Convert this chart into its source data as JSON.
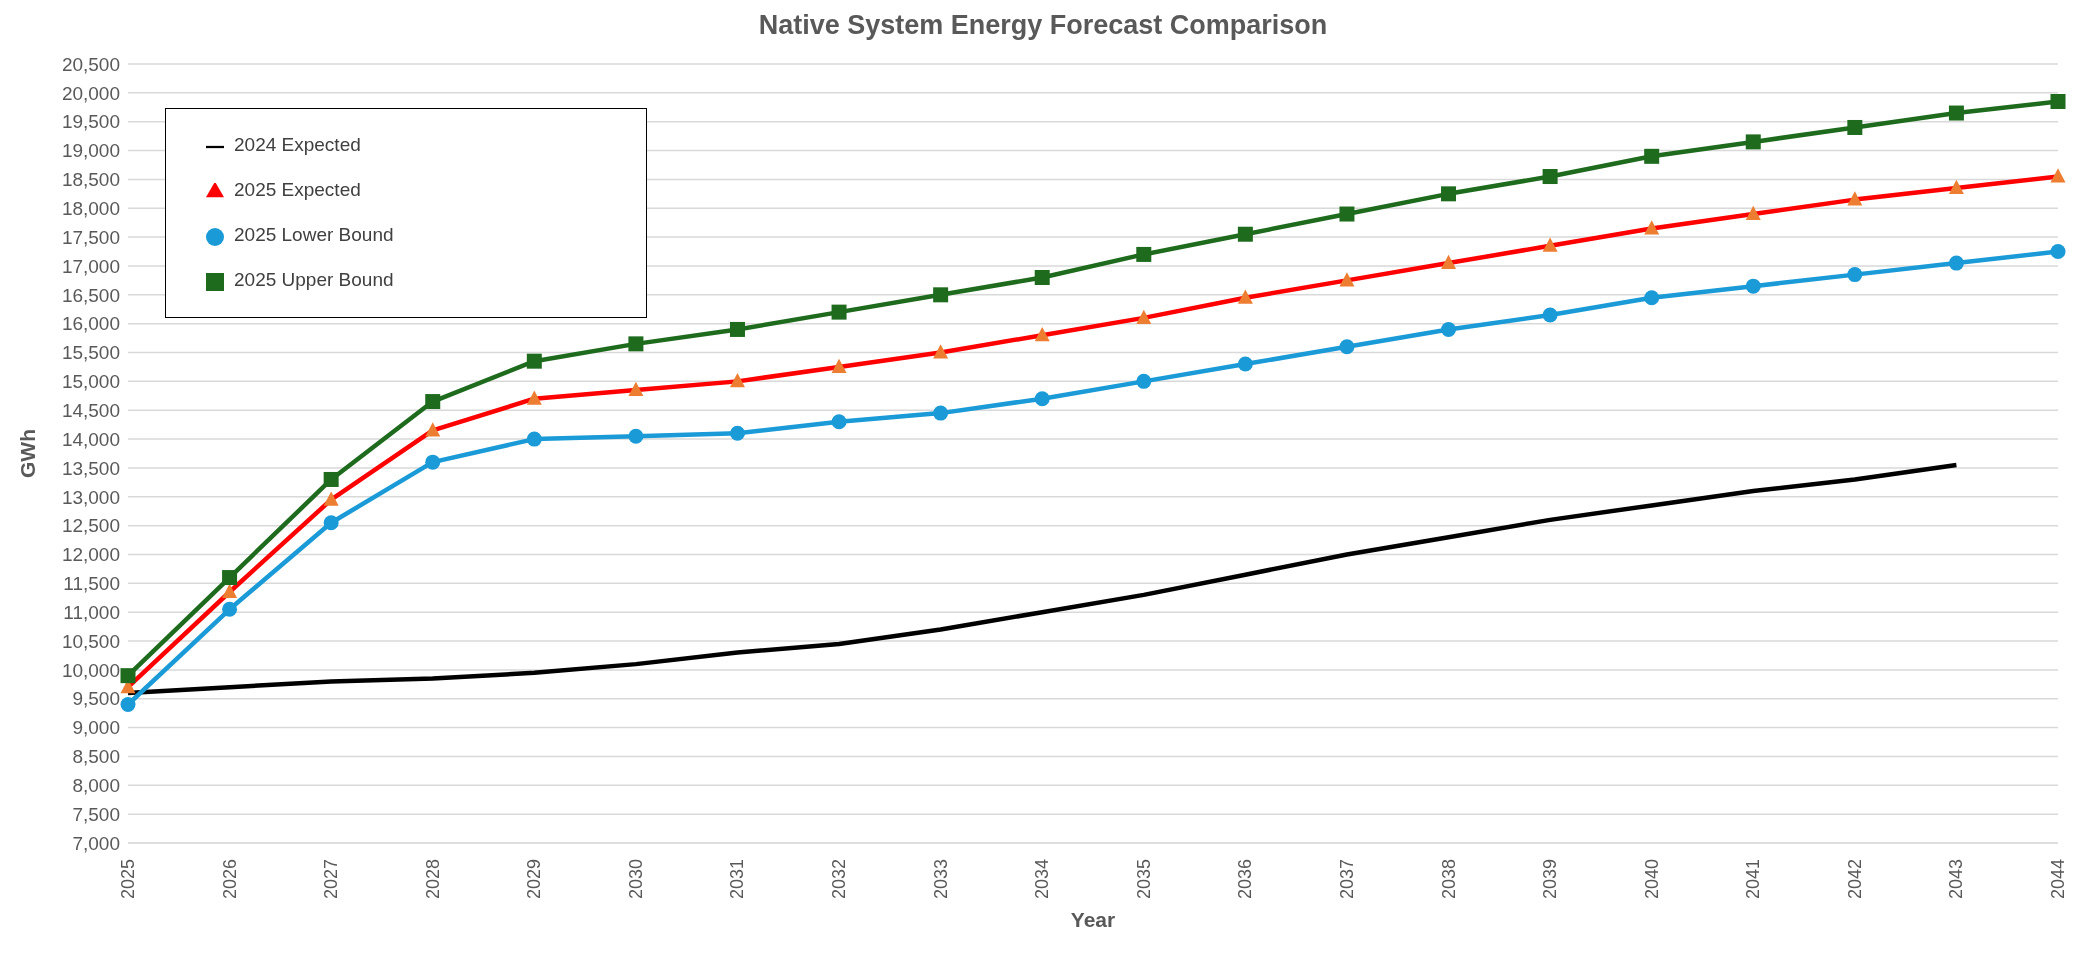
{
  "chart_data": {
    "type": "line",
    "title": "Native System Energy Forecast Comparison",
    "xlabel": "Year",
    "ylabel": "GWh",
    "categories": [
      "2025",
      "2026",
      "2027",
      "2028",
      "2029",
      "2030",
      "2031",
      "2032",
      "2033",
      "2034",
      "2035",
      "2036",
      "2037",
      "2038",
      "2039",
      "2040",
      "2041",
      "2042",
      "2043",
      "2044"
    ],
    "series": [
      {
        "name": "2024 Expected",
        "color": "#000000",
        "marker": "none",
        "values": [
          9600,
          9700,
          9800,
          9850,
          9950,
          10100,
          10300,
          10450,
          10700,
          11000,
          11300,
          11650,
          12000,
          12300,
          12600,
          12850,
          13100,
          13300,
          13550,
          null
        ]
      },
      {
        "name": "2025 Expected",
        "color": "#ff0000",
        "marker": "triangle",
        "values": [
          9700,
          11350,
          12950,
          14150,
          14700,
          14850,
          15000,
          15250,
          15500,
          15800,
          16100,
          16450,
          16750,
          17050,
          17350,
          17650,
          17900,
          18150,
          18350,
          18550
        ]
      },
      {
        "name": "2025 Upper Bound",
        "color": "#1e6b1e",
        "marker": "square",
        "values": [
          9900,
          11600,
          13300,
          14650,
          15350,
          15650,
          15900,
          16200,
          16500,
          16800,
          17200,
          17550,
          17900,
          18250,
          18550,
          18900,
          19150,
          19400,
          19650,
          19850
        ]
      },
      {
        "name": "2025 Lower Bound",
        "color": "#1a9ad6",
        "marker": "circle",
        "values": [
          9400,
          11050,
          12550,
          13600,
          14000,
          14050,
          14100,
          14300,
          14450,
          14700,
          15000,
          15300,
          15600,
          15900,
          16150,
          16450,
          16650,
          16850,
          17050,
          17250
        ]
      }
    ],
    "ylim": [
      7000,
      20500
    ],
    "yticks": [
      {
        "value": 7000,
        "label": "7,000"
      },
      {
        "value": 7500,
        "label": "7,500"
      },
      {
        "value": 8000,
        "label": "8,000"
      },
      {
        "value": 8500,
        "label": "8,500"
      },
      {
        "value": 9000,
        "label": "9,000"
      },
      {
        "value": 9500,
        "label": "9,500"
      },
      {
        "value": 10000,
        "label": "10,000"
      },
      {
        "value": 10500,
        "label": "10,500"
      },
      {
        "value": 11000,
        "label": "11,000"
      },
      {
        "value": 11500,
        "label": "11,500"
      },
      {
        "value": 12000,
        "label": "12,000"
      },
      {
        "value": 12500,
        "label": "12,500"
      },
      {
        "value": 13000,
        "label": "13,000"
      },
      {
        "value": 13500,
        "label": "13,500"
      },
      {
        "value": 14000,
        "label": "14,000"
      },
      {
        "value": 14500,
        "label": "14,500"
      },
      {
        "value": 15000,
        "label": "15,000"
      },
      {
        "value": 15500,
        "label": "15,500"
      },
      {
        "value": 16000,
        "label": "16,000"
      },
      {
        "value": 16500,
        "label": "16,500"
      },
      {
        "value": 17000,
        "label": "17,000"
      },
      {
        "value": 17500,
        "label": "17,500"
      },
      {
        "value": 18000,
        "label": "18,000"
      },
      {
        "value": 18500,
        "label": "18,500"
      },
      {
        "value": 19000,
        "label": "19,000"
      },
      {
        "value": 19500,
        "label": "19,500"
      },
      {
        "value": 20000,
        "label": "20,000"
      },
      {
        "value": 20500,
        "label": "20,500"
      }
    ],
    "grid": "y",
    "legend": "top left",
    "line_style": "solid"
  }
}
